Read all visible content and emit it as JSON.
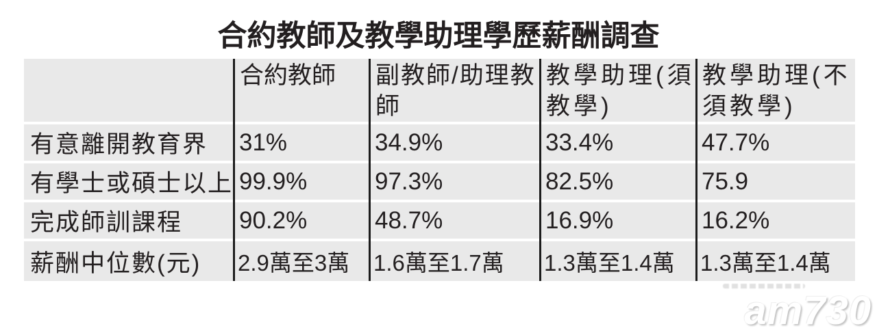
{
  "title": "合約教師及教學助理學歷薪酬調查",
  "watermark": {
    "logo": "am730"
  },
  "header_display": {
    "col1": "合約教師",
    "col2": "副教師/助理教\n師",
    "col3": "教學助理(須\n教學)",
    "col4": "教學助理(不\n須教學)"
  },
  "colors": {
    "cell_background": "#e9e9e9",
    "divider": "#1c1c1c",
    "text": "#231f20",
    "gap": "#ffffff",
    "watermark": "#ffffff"
  },
  "chart_data": {
    "type": "table",
    "title": "合約教師及教學助理學歷薪酬調查",
    "columns": [
      "合約教師",
      "副教師/助理教師",
      "教學助理(須教學)",
      "教學助理(不須教學)"
    ],
    "rows": [
      {
        "label": "有意離開教育界",
        "values": [
          "31%",
          "34.9%",
          "33.4%",
          "47.7%"
        ]
      },
      {
        "label": "有學士或碩士以上",
        "values": [
          "99.9%",
          "97.3%",
          "82.5%",
          "75.9"
        ]
      },
      {
        "label": "完成師訓課程",
        "values": [
          "90.2%",
          "48.7%",
          "16.9%",
          "16.2%"
        ]
      },
      {
        "label": "薪酬中位數(元)",
        "values": [
          "2.9萬至3萬",
          "1.6萬至1.7萬",
          "1.3萬至1.4萬",
          "1.3萬至1.4萬"
        ]
      }
    ],
    "layout": {
      "grid": "off",
      "source_watermark": "am730"
    }
  }
}
